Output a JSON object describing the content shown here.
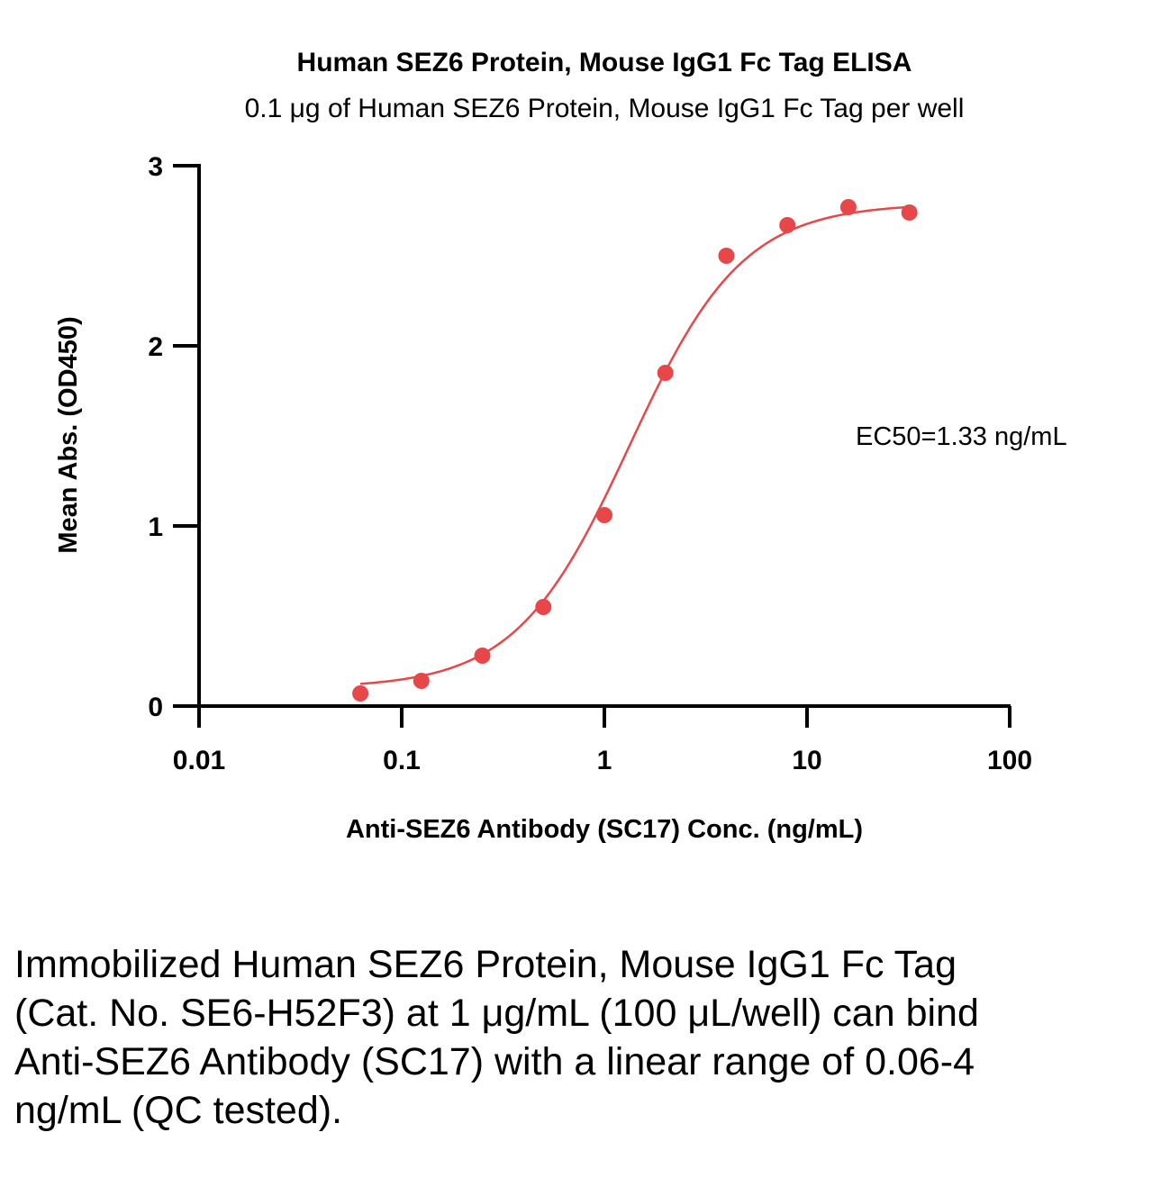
{
  "chart_data": {
    "type": "scatter",
    "title": "Human SEZ6 Protein, Mouse IgG1 Fc Tag ELISA",
    "subtitle": "0.1 μg of Human SEZ6 Protein, Mouse IgG1 Fc Tag per well",
    "xlabel": "Anti-SEZ6 Antibody (SC17) Conc. (ng/mL)",
    "ylabel": "Mean Abs. (OD450)",
    "xscale": "log",
    "xlim": [
      0.01,
      100
    ],
    "ylim": [
      0,
      3
    ],
    "xticks": [
      0.01,
      0.1,
      1,
      10,
      100
    ],
    "xtick_labels": [
      "0.01",
      "0.1",
      "1",
      "10",
      "100"
    ],
    "yticks": [
      0,
      1,
      2,
      3
    ],
    "ytick_labels": [
      "0",
      "1",
      "2",
      "3"
    ],
    "series": [
      {
        "name": "Anti-SEZ6 Antibody (SC17)",
        "color": "#e8474a",
        "x": [
          0.0625,
          0.125,
          0.25,
          0.5,
          1,
          2,
          4,
          8,
          16,
          32
        ],
        "y": [
          0.07,
          0.14,
          0.28,
          0.55,
          1.06,
          1.85,
          2.5,
          2.67,
          2.77,
          2.74
        ]
      }
    ],
    "fit": {
      "model": "4PL",
      "bottom": 0.1,
      "top": 2.79,
      "ec50": 1.33,
      "hill": 1.55,
      "color": "#e8474a"
    },
    "annotation": "EC50=1.33 ng/mL"
  },
  "caption": "Immobilized Human SEZ6 Protein, Mouse IgG1 Fc Tag (Cat. No. SE6-H52F3) at 1 μg/mL (100 μL/well) can bind Anti-SEZ6 Antibody (SC17) with a linear range of 0.06-4 ng/mL (QC tested)."
}
